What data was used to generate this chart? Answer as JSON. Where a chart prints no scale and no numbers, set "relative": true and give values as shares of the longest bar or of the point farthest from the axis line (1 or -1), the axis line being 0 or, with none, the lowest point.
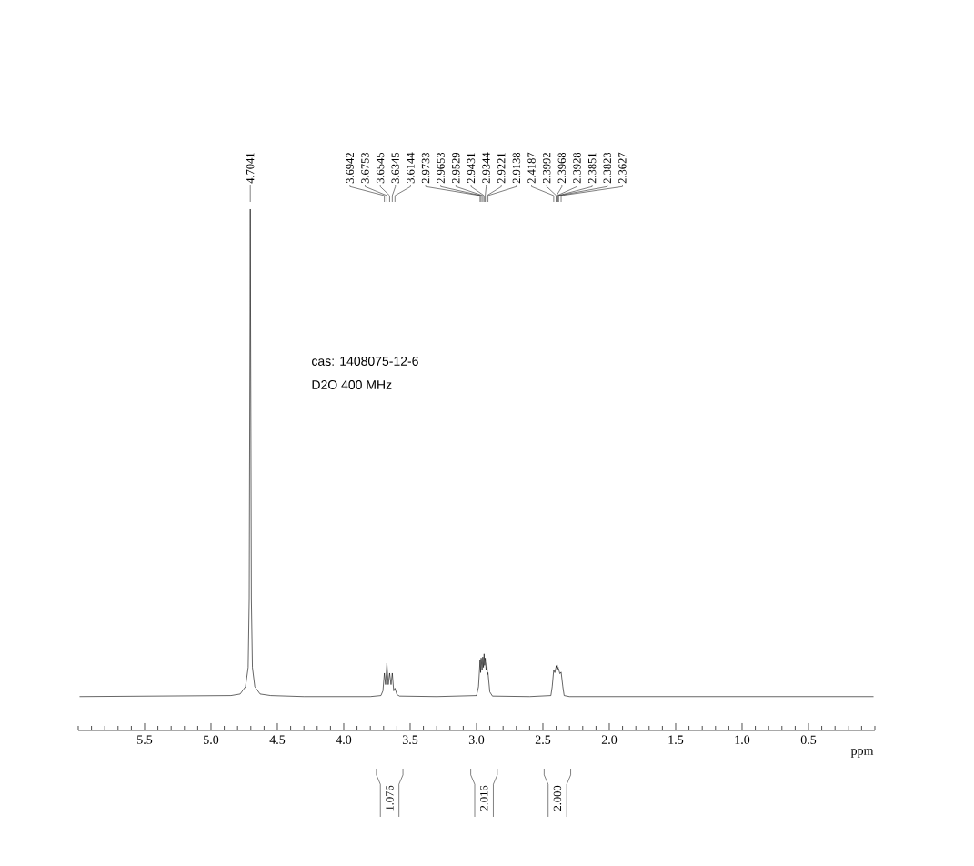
{
  "chart_data": {
    "type": "line",
    "relative": true,
    "xlabel": "ppm",
    "xlim": [
      6.0,
      0.0
    ],
    "xticks": [
      {
        "value": 6.0,
        "label": null
      },
      {
        "value": 5.9,
        "label": null
      },
      {
        "value": 5.8,
        "label": null
      },
      {
        "value": 5.7,
        "label": null
      },
      {
        "value": 5.6,
        "label": null
      },
      5.5,
      {
        "value": 5.4,
        "label": null
      },
      {
        "value": 5.3,
        "label": null
      },
      {
        "value": 5.2,
        "label": null
      },
      {
        "value": 5.1,
        "label": null
      },
      {
        "value": 5.0,
        "label": "5.0"
      },
      {
        "value": 4.9,
        "label": null
      },
      {
        "value": 4.8,
        "label": null
      },
      {
        "value": 4.7,
        "label": null
      },
      {
        "value": 4.6,
        "label": null
      },
      4.5,
      {
        "value": 4.4,
        "label": null
      },
      {
        "value": 4.3,
        "label": null
      },
      {
        "value": 4.2,
        "label": null
      },
      {
        "value": 4.1,
        "label": null
      },
      {
        "value": 4.0,
        "label": "4.0"
      },
      {
        "value": 3.9,
        "label": null
      },
      {
        "value": 3.8,
        "label": null
      },
      {
        "value": 3.7,
        "label": null
      },
      {
        "value": 3.6,
        "label": null
      },
      3.5,
      {
        "value": 3.4,
        "label": null
      },
      {
        "value": 3.3,
        "label": null
      },
      {
        "value": 3.2,
        "label": null
      },
      {
        "value": 3.1,
        "label": null
      },
      {
        "value": 3.0,
        "label": "3.0"
      },
      {
        "value": 2.9,
        "label": null
      },
      {
        "value": 2.8,
        "label": null
      },
      {
        "value": 2.7,
        "label": null
      },
      {
        "value": 2.6,
        "label": null
      },
      2.5,
      {
        "value": 2.4,
        "label": null
      },
      {
        "value": 2.3,
        "label": null
      },
      {
        "value": 2.2,
        "label": null
      },
      {
        "value": 2.1,
        "label": null
      },
      {
        "value": 2.0,
        "label": "2.0"
      },
      {
        "value": 1.9,
        "label": null
      },
      {
        "value": 1.8,
        "label": null
      },
      {
        "value": 1.7,
        "label": null
      },
      {
        "value": 1.6,
        "label": null
      },
      1.5,
      {
        "value": 1.4,
        "label": null
      },
      {
        "value": 1.3,
        "label": null
      },
      {
        "value": 1.2,
        "label": null
      },
      {
        "value": 1.1,
        "label": null
      },
      {
        "value": 1.0,
        "label": "1.0"
      },
      {
        "value": 0.9,
        "label": null
      },
      {
        "value": 0.8,
        "label": null
      },
      {
        "value": 0.7,
        "label": null
      },
      {
        "value": 0.6,
        "label": null
      },
      0.5,
      {
        "value": 0.4,
        "label": null
      },
      {
        "value": 0.3,
        "label": null
      },
      {
        "value": 0.2,
        "label": null
      },
      {
        "value": 0.1,
        "label": null
      },
      {
        "value": 0.0,
        "label": null
      }
    ],
    "x": [
      5.99,
      4.85,
      4.78,
      4.74,
      4.72,
      4.712,
      4.7041,
      4.696,
      4.688,
      4.67,
      4.63,
      4.55,
      4.3,
      3.8,
      3.72,
      3.705,
      3.6942,
      3.685,
      3.6753,
      3.665,
      3.6545,
      3.644,
      3.6345,
      3.624,
      3.6144,
      3.6,
      3.58,
      3.3,
      3.0,
      2.985,
      2.9733,
      2.969,
      2.9653,
      2.958,
      2.9529,
      2.948,
      2.9431,
      2.939,
      2.9344,
      2.928,
      2.9221,
      2.918,
      2.9138,
      2.9,
      2.88,
      2.6,
      2.44,
      2.43,
      2.4187,
      2.41,
      2.3992,
      2.398,
      2.3968,
      2.395,
      2.3928,
      2.389,
      2.3851,
      2.384,
      2.3823,
      2.372,
      2.3627,
      2.35,
      2.34,
      2.3,
      0.01
    ],
    "series": [
      {
        "color": "#000000",
        "values": [
          0.065,
          0.067,
          0.07,
          0.084,
          0.121,
          0.252,
          1,
          0.252,
          0.121,
          0.084,
          0.07,
          0.067,
          0.065,
          0.065,
          0.067,
          0.076,
          0.11,
          0.088,
          0.129,
          0.088,
          0.11,
          0.088,
          0.11,
          0.076,
          0.081,
          0.069,
          0.066,
          0.065,
          0.067,
          0.084,
          0.135,
          0.111,
          0.139,
          0.116,
          0.141,
          0.121,
          0.147,
          0.125,
          0.139,
          0.116,
          0.13,
          0.107,
          0.111,
          0.074,
          0.066,
          0.065,
          0.067,
          0.084,
          0.116,
          0.111,
          0.124,
          0.121,
          0.125,
          0.122,
          0.126,
          0.119,
          0.121,
          0.116,
          0.118,
          0.109,
          0.112,
          0.084,
          0.067,
          0.065,
          0.065
        ]
      }
    ],
    "annotations": [
      "4.7041",
      "3.6942",
      "3.6753",
      "3.6545",
      "3.6345",
      "3.6144",
      "2.9733",
      "2.9653",
      "2.9529",
      "2.9431",
      "2.9344",
      "2.9221",
      "2.9138",
      "2.4187",
      "2.3992",
      "2.3968",
      "2.3928",
      "2.3851",
      "2.3823",
      "2.3627",
      "1.076",
      "2.016",
      "2.000",
      "cas: 1408075-12-6",
      "D2O  400  MHz"
    ]
  }
}
